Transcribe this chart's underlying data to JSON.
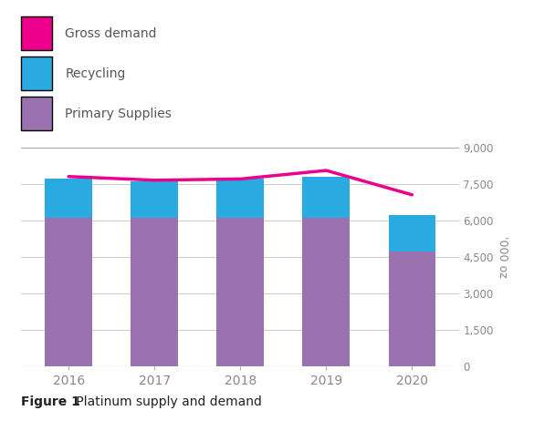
{
  "years": [
    2016,
    2017,
    2018,
    2019,
    2020
  ],
  "primary_supplies": [
    6100,
    6100,
    6100,
    6100,
    4700
  ],
  "recycling": [
    1600,
    1500,
    1600,
    1700,
    1500
  ],
  "gross_demand": [
    7800,
    7650,
    7700,
    8050,
    7050
  ],
  "primary_color": "#9B72B0",
  "recycling_color": "#29ABE2",
  "demand_color": "#EC008C",
  "ylim": [
    0,
    9000
  ],
  "yticks": [
    0,
    1500,
    3000,
    4500,
    6000,
    7500,
    9000
  ],
  "ylabel": "'000 oz",
  "title_bold": "Figure 1",
  "title_normal": " Platinum supply and demand",
  "legend_labels": [
    "Gross demand",
    "Recycling",
    "Primary Supplies"
  ],
  "bar_width": 0.55,
  "background_color": "#ffffff",
  "grid_color": "#cccccc",
  "axis_color": "#aaaaaa",
  "tick_label_color": "#888888",
  "legend_text_color": "#555555"
}
